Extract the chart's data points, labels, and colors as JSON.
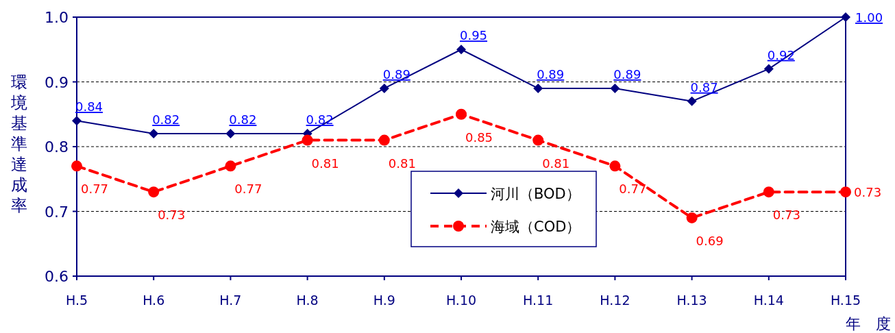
{
  "chart_data": {
    "type": "line",
    "categories": [
      "H.5",
      "H.6",
      "H.7",
      "H.8",
      "H.9",
      "H.10",
      "H.11",
      "H.12",
      "H.13",
      "H.14",
      "H.15"
    ],
    "series": [
      {
        "name": "河川（BOD）",
        "color": "#000080",
        "marker": "diamond",
        "line_style": "solid",
        "values": [
          0.84,
          0.82,
          0.82,
          0.82,
          0.89,
          0.95,
          0.89,
          0.89,
          0.87,
          0.92,
          1.0
        ],
        "value_labels": [
          "0.84",
          "0.82",
          "0.82",
          "0.82",
          "0.89",
          "0.95",
          "0.89",
          "0.89",
          "0.87",
          "0.92",
          "1.00"
        ]
      },
      {
        "name": "海域（COD）",
        "color": "#ff0000",
        "marker": "circle",
        "line_style": "dashed",
        "values": [
          0.77,
          0.73,
          0.77,
          0.81,
          0.81,
          0.85,
          0.81,
          0.77,
          0.69,
          0.73,
          0.73
        ],
        "value_labels": [
          "0.77",
          "0.73",
          "0.77",
          "0.81",
          "0.81",
          "0.85",
          "0.81",
          "0.77",
          "0.69",
          "0.73",
          "0.73"
        ]
      }
    ],
    "ylabel": "環境基準達成率",
    "xlabel": "年　度",
    "ylim": [
      0.6,
      1.0
    ],
    "yticks": [
      {
        "value": 0.6,
        "label": "0.6"
      },
      {
        "value": 0.7,
        "label": "0.7"
      },
      {
        "value": 0.8,
        "label": "0.8"
      },
      {
        "value": 0.9,
        "label": "0.9"
      },
      {
        "value": 1.0,
        "label": "1.0"
      }
    ],
    "grid": "y",
    "legend": "bottom"
  }
}
